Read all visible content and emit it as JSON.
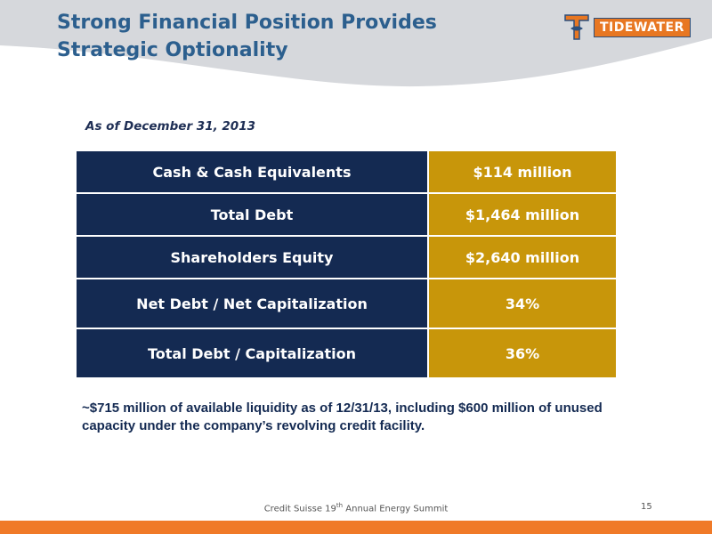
{
  "slide": {
    "title": "Strong Financial Position Provides Strategic Optionality",
    "logo_text": "TIDEWATER",
    "as_of": "As of December 31, 2013",
    "table": [
      {
        "label": "Cash & Cash Equivalents",
        "value": "$114 million"
      },
      {
        "label": "Total Debt",
        "value": "$1,464 million"
      },
      {
        "label": "Shareholders Equity",
        "value": "$2,640 million"
      },
      {
        "label": "Net Debt / Net Capitalization",
        "value": "34%"
      },
      {
        "label": "Total Debt / Capitalization",
        "value": "36%"
      }
    ],
    "note": "~$715 million of available liquidity as of 12/31/13, including $600 million of unused capacity under the company’s revolving credit facility.",
    "footer": {
      "event_prefix": "Credit Suisse 19",
      "event_sup": "th",
      "event_suffix": " Annual Energy Summit",
      "page_number": "15"
    },
    "colors": {
      "title": "#2c5f8e",
      "table_label_bg": "#142a52",
      "table_value_bg": "#c8960a",
      "header_wave": "#d6d8dc",
      "bottom_bar": "#f07a28"
    }
  }
}
